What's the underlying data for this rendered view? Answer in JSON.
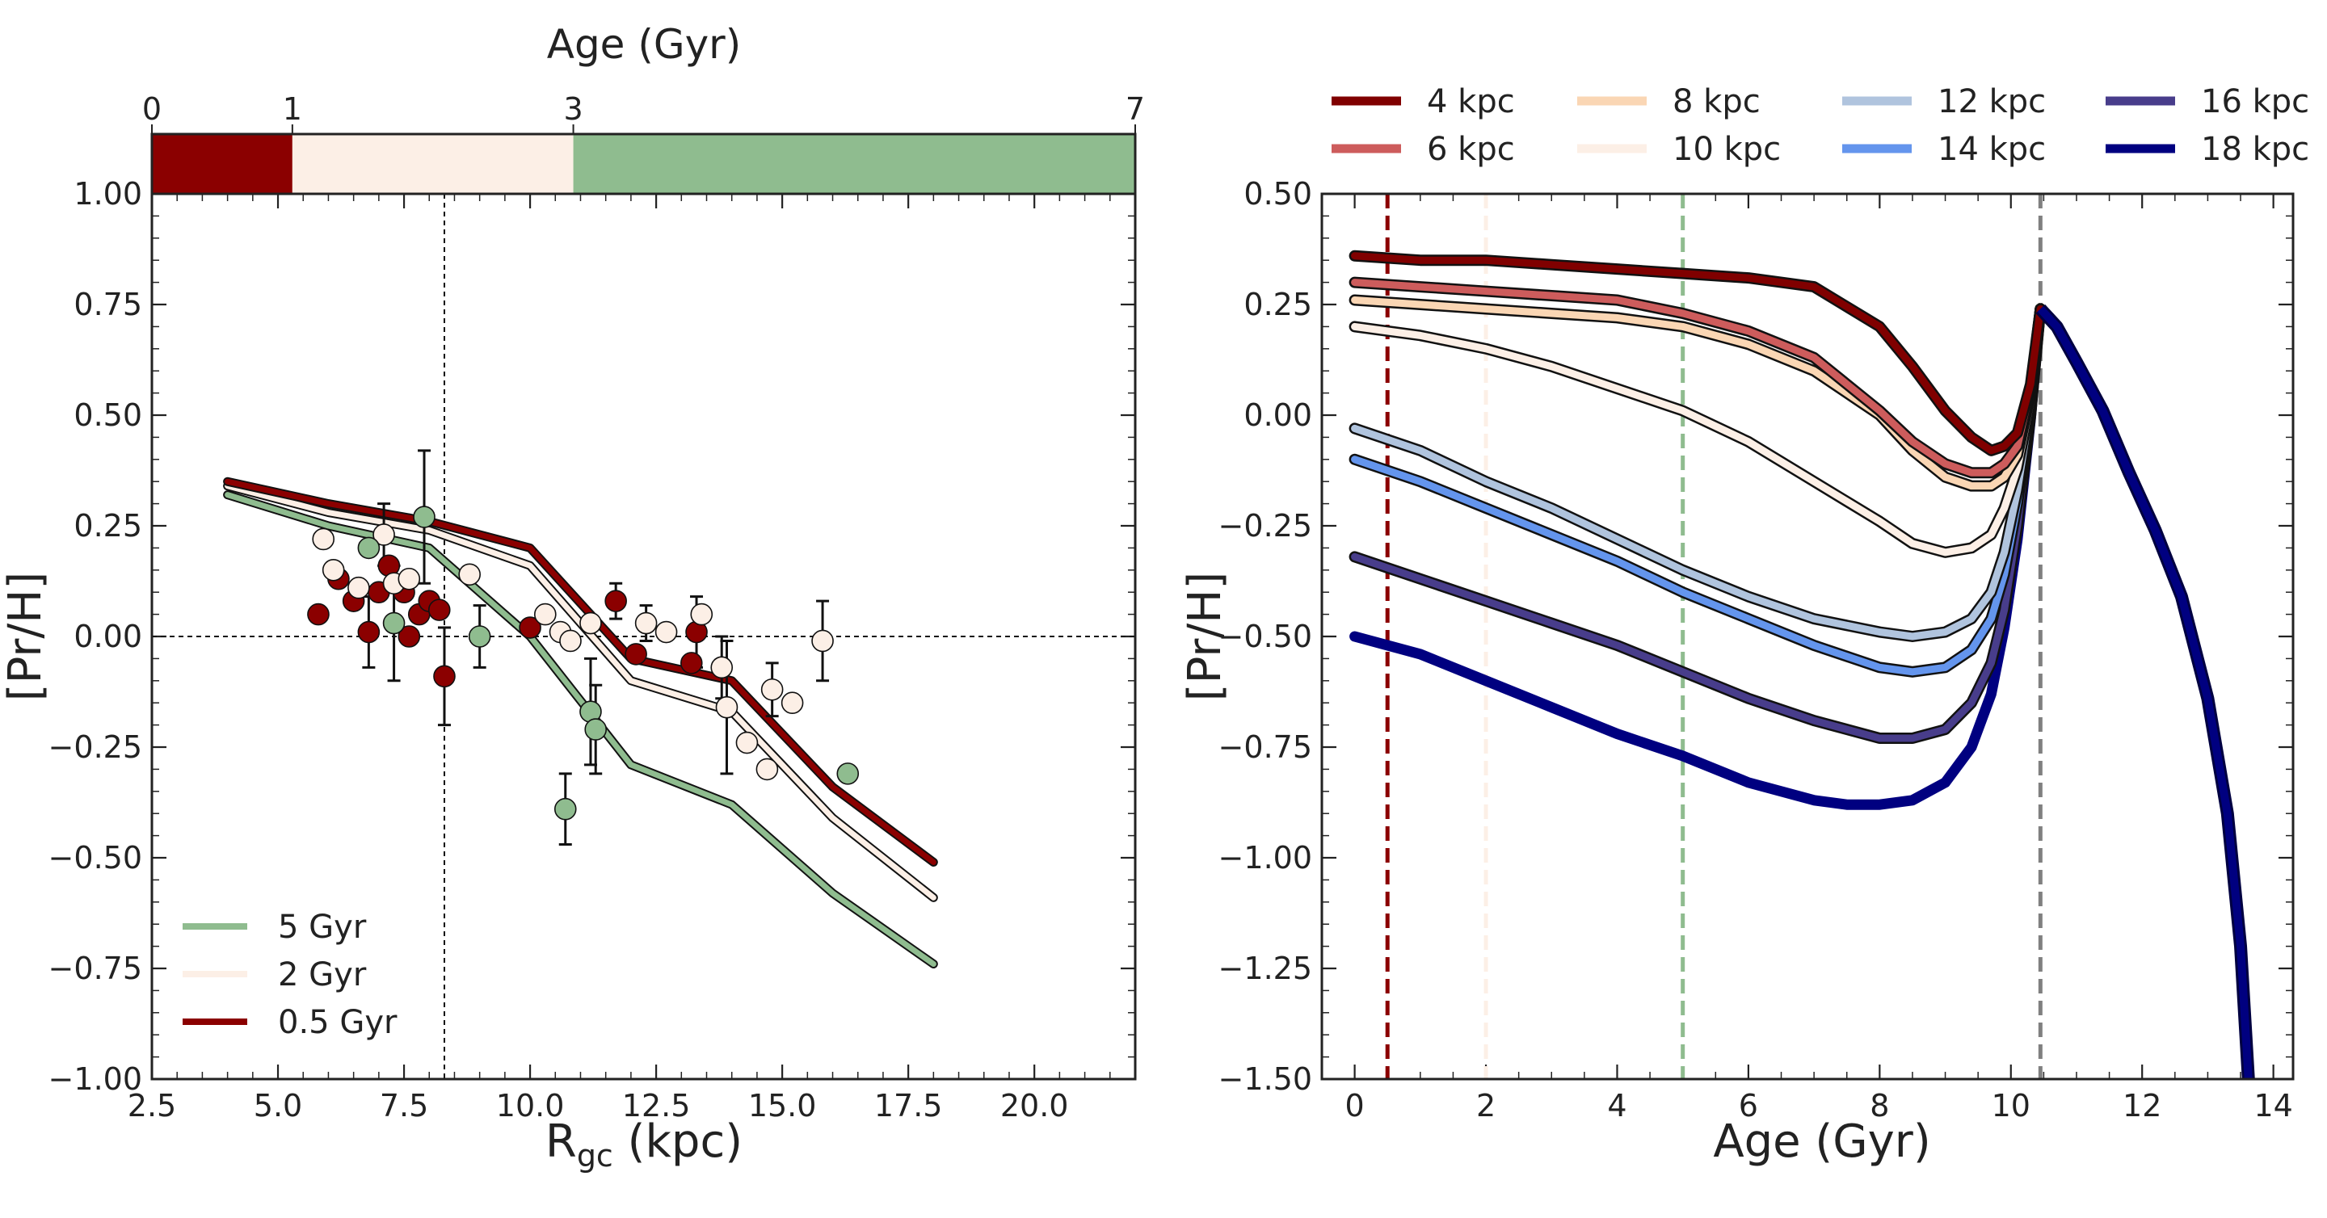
{
  "chart_data": [
    {
      "type": "scatter",
      "xlabel": "R",
      "xlabel_sub": "gc",
      "xlabel_unit": " (kpc)",
      "ylabel": "[Pr/H]",
      "xlim": [
        2.5,
        22.0
      ],
      "ylim": [
        -1.0,
        1.0
      ],
      "xticks": [
        2.5,
        5.0,
        7.5,
        10.0,
        12.5,
        15.0,
        17.5,
        20.0
      ],
      "xtick_labels": [
        "2.5",
        "5.0",
        "7.5",
        "10.0",
        "12.5",
        "15.0",
        "17.5",
        "20.0"
      ],
      "yticks": [
        -1.0,
        -0.75,
        -0.5,
        -0.25,
        0.0,
        0.25,
        0.5,
        0.75,
        1.0
      ],
      "ytick_labels": [
        "−1.00",
        "−0.75",
        "−0.50",
        "−0.25",
        "0.00",
        "0.25",
        "0.50",
        "0.75",
        "1.00"
      ],
      "reference_lines": {
        "x": 8.3,
        "y": 0.0,
        "style": "dashed"
      },
      "age_colorbar": {
        "label": "Age (Gyr)",
        "ticks": [
          0,
          1,
          3,
          7
        ],
        "tick_labels": [
          "0",
          "1",
          "3",
          "7"
        ],
        "segments": [
          {
            "from": 0,
            "to": 1,
            "color": "#8b0000"
          },
          {
            "from": 1,
            "to": 3,
            "color": "#fcefe6"
          },
          {
            "from": 3,
            "to": 7,
            "color": "#8fbc8f"
          }
        ]
      },
      "legend_position": "lower-left",
      "series": [
        {
          "name": "5 Gyr",
          "color": "#8fbc8f",
          "x": [
            4.0,
            6.0,
            8.0,
            10.0,
            12.0,
            14.0,
            16.0,
            18.0
          ],
          "y": [
            0.32,
            0.25,
            0.2,
            0.0,
            -0.29,
            -0.38,
            -0.58,
            -0.74
          ]
        },
        {
          "name": "2 Gyr",
          "color": "#fcefe6",
          "x": [
            4.0,
            6.0,
            8.0,
            10.0,
            12.0,
            14.0,
            16.0,
            18.0
          ],
          "y": [
            0.34,
            0.28,
            0.24,
            0.16,
            -0.1,
            -0.17,
            -0.41,
            -0.59
          ]
        },
        {
          "name": "0.5 Gyr",
          "color": "#8b0000",
          "x": [
            4.0,
            6.0,
            8.0,
            10.0,
            12.0,
            14.0,
            16.0,
            18.0
          ],
          "y": [
            0.35,
            0.3,
            0.26,
            0.2,
            -0.05,
            -0.1,
            -0.34,
            -0.51
          ]
        }
      ],
      "points": [
        {
          "x": 5.8,
          "y": 0.05,
          "group": "young"
        },
        {
          "x": 6.2,
          "y": 0.13,
          "group": "young"
        },
        {
          "x": 6.5,
          "y": 0.08,
          "group": "young"
        },
        {
          "x": 6.8,
          "y": 0.01,
          "err": 0.08,
          "group": "young"
        },
        {
          "x": 7.0,
          "y": 0.1,
          "group": "young"
        },
        {
          "x": 7.2,
          "y": 0.16,
          "group": "young"
        },
        {
          "x": 7.5,
          "y": 0.1,
          "group": "young"
        },
        {
          "x": 7.6,
          "y": 0.0,
          "group": "young"
        },
        {
          "x": 7.8,
          "y": 0.05,
          "group": "young"
        },
        {
          "x": 8.0,
          "y": 0.08,
          "group": "young"
        },
        {
          "x": 8.2,
          "y": 0.06,
          "group": "young"
        },
        {
          "x": 8.3,
          "y": -0.09,
          "err": 0.11,
          "group": "young"
        },
        {
          "x": 10.0,
          "y": 0.02,
          "group": "young"
        },
        {
          "x": 11.7,
          "y": 0.08,
          "err": 0.04,
          "group": "young"
        },
        {
          "x": 12.1,
          "y": -0.04,
          "group": "young"
        },
        {
          "x": 13.2,
          "y": -0.06,
          "group": "young"
        },
        {
          "x": 13.3,
          "y": 0.01,
          "err": 0.08,
          "group": "young"
        },
        {
          "x": 5.9,
          "y": 0.22,
          "group": "mid"
        },
        {
          "x": 6.1,
          "y": 0.15,
          "group": "mid"
        },
        {
          "x": 6.6,
          "y": 0.11,
          "group": "mid"
        },
        {
          "x": 7.1,
          "y": 0.23,
          "err": 0.07,
          "group": "mid"
        },
        {
          "x": 7.3,
          "y": 0.12,
          "group": "mid"
        },
        {
          "x": 7.6,
          "y": 0.13,
          "group": "mid"
        },
        {
          "x": 8.8,
          "y": 0.14,
          "group": "mid"
        },
        {
          "x": 10.3,
          "y": 0.05,
          "group": "mid"
        },
        {
          "x": 10.6,
          "y": 0.01,
          "group": "mid"
        },
        {
          "x": 10.8,
          "y": -0.01,
          "group": "mid"
        },
        {
          "x": 11.2,
          "y": 0.03,
          "group": "mid"
        },
        {
          "x": 12.3,
          "y": 0.03,
          "err": 0.04,
          "group": "mid"
        },
        {
          "x": 12.7,
          "y": 0.01,
          "group": "mid"
        },
        {
          "x": 13.4,
          "y": 0.05,
          "group": "mid"
        },
        {
          "x": 13.8,
          "y": -0.07,
          "err": 0.07,
          "group": "mid"
        },
        {
          "x": 13.9,
          "y": -0.16,
          "err": 0.15,
          "group": "mid"
        },
        {
          "x": 14.3,
          "y": -0.24,
          "group": "mid"
        },
        {
          "x": 14.7,
          "y": -0.3,
          "group": "mid"
        },
        {
          "x": 14.8,
          "y": -0.12,
          "err": 0.06,
          "group": "mid"
        },
        {
          "x": 15.2,
          "y": -0.15,
          "group": "mid"
        },
        {
          "x": 15.8,
          "y": -0.01,
          "err": 0.09,
          "group": "mid"
        },
        {
          "x": 6.8,
          "y": 0.2,
          "group": "old"
        },
        {
          "x": 7.3,
          "y": 0.03,
          "err": 0.13,
          "group": "old"
        },
        {
          "x": 7.9,
          "y": 0.27,
          "err": 0.15,
          "group": "old"
        },
        {
          "x": 9.0,
          "y": 0.0,
          "err": 0.07,
          "group": "old"
        },
        {
          "x": 10.7,
          "y": -0.39,
          "err": 0.08,
          "group": "old"
        },
        {
          "x": 11.2,
          "y": -0.17,
          "err": 0.12,
          "group": "old"
        },
        {
          "x": 11.3,
          "y": -0.21,
          "err": 0.1,
          "group": "old"
        },
        {
          "x": 16.3,
          "y": -0.31,
          "group": "old"
        }
      ]
    },
    {
      "type": "line",
      "xlabel": "Age (Gyr)",
      "ylabel": "[Pr/H]",
      "xlim": [
        -0.5,
        14.3
      ],
      "ylim": [
        -1.5,
        0.5
      ],
      "xticks": [
        0,
        2,
        4,
        6,
        8,
        10,
        12,
        14
      ],
      "xtick_labels": [
        "0",
        "2",
        "4",
        "6",
        "8",
        "10",
        "12",
        "14"
      ],
      "yticks": [
        -1.5,
        -1.25,
        -1.0,
        -0.75,
        -0.5,
        -0.25,
        0.0,
        0.25,
        0.5
      ],
      "ytick_labels": [
        "−1.50",
        "−1.25",
        "−1.00",
        "−0.75",
        "−0.50",
        "−0.25",
        "0.00",
        "0.25",
        "0.50"
      ],
      "vertical_lines": [
        {
          "x": 0.5,
          "color": "#8b0000"
        },
        {
          "x": 2.0,
          "color": "#fcefe6"
        },
        {
          "x": 5.0,
          "color": "#8fbc8f"
        },
        {
          "x": 10.45,
          "color": "#808080"
        }
      ],
      "legend_position": "top",
      "common_tail": {
        "x": [
          10.45,
          10.7,
          11.0,
          11.4,
          11.8,
          12.2,
          12.6,
          13.0,
          13.3,
          13.5,
          13.6,
          13.62
        ],
        "y": [
          0.24,
          0.2,
          0.12,
          0.01,
          -0.13,
          -0.26,
          -0.41,
          -0.64,
          -0.9,
          -1.2,
          -1.45,
          -1.5
        ]
      },
      "series": [
        {
          "name": "4 kpc",
          "color": "#800000",
          "outlined": true,
          "x": [
            0,
            1,
            2,
            3,
            4,
            5,
            6,
            7,
            8,
            8.5,
            9,
            9.4,
            9.7,
            9.9,
            10.1,
            10.3,
            10.45
          ],
          "y": [
            0.36,
            0.35,
            0.35,
            0.34,
            0.33,
            0.32,
            0.31,
            0.29,
            0.2,
            0.11,
            0.01,
            -0.05,
            -0.08,
            -0.07,
            -0.04,
            0.07,
            0.24
          ]
        },
        {
          "name": "6 kpc",
          "color": "#cd5c5c",
          "outlined": true,
          "x": [
            0,
            1,
            2,
            3,
            4,
            5,
            6,
            7,
            8,
            8.5,
            9,
            9.4,
            9.7,
            9.9,
            10.1,
            10.3,
            10.45
          ],
          "y": [
            0.3,
            0.29,
            0.28,
            0.27,
            0.26,
            0.23,
            0.19,
            0.13,
            0.01,
            -0.06,
            -0.11,
            -0.13,
            -0.13,
            -0.11,
            -0.07,
            0.06,
            0.24
          ]
        },
        {
          "name": "8 kpc",
          "color": "#fad6b4",
          "outlined": true,
          "x": [
            0,
            1,
            2,
            3,
            4,
            5,
            6,
            7,
            8,
            8.5,
            9,
            9.4,
            9.7,
            9.9,
            10.1,
            10.3,
            10.45
          ],
          "y": [
            0.26,
            0.25,
            0.24,
            0.23,
            0.22,
            0.2,
            0.16,
            0.1,
            0.0,
            -0.08,
            -0.14,
            -0.16,
            -0.16,
            -0.14,
            -0.09,
            0.05,
            0.24
          ]
        },
        {
          "name": "10 kpc",
          "color": "#fcefe6",
          "outlined": true,
          "x": [
            0,
            1,
            2,
            3,
            4,
            5,
            6,
            7,
            8,
            8.5,
            9,
            9.4,
            9.7,
            9.9,
            10.1,
            10.3,
            10.45
          ],
          "y": [
            0.2,
            0.18,
            0.15,
            0.11,
            0.06,
            0.01,
            -0.06,
            -0.15,
            -0.24,
            -0.29,
            -0.31,
            -0.3,
            -0.27,
            -0.21,
            -0.12,
            0.03,
            0.24
          ]
        },
        {
          "name": "12 kpc",
          "color": "#b0c4de",
          "outlined": true,
          "x": [
            0,
            1,
            2,
            3,
            4,
            5,
            6,
            7,
            8,
            8.5,
            9,
            9.4,
            9.7,
            9.9,
            10.1,
            10.3,
            10.45
          ],
          "y": [
            -0.03,
            -0.08,
            -0.15,
            -0.21,
            -0.28,
            -0.35,
            -0.41,
            -0.46,
            -0.49,
            -0.5,
            -0.49,
            -0.46,
            -0.4,
            -0.31,
            -0.17,
            0.02,
            0.24
          ]
        },
        {
          "name": "14 kpc",
          "color": "#6495ed",
          "outlined": true,
          "x": [
            0,
            1,
            2,
            3,
            4,
            5,
            6,
            7,
            8,
            8.5,
            9,
            9.4,
            9.7,
            9.9,
            10.1,
            10.3,
            10.45
          ],
          "y": [
            -0.1,
            -0.15,
            -0.21,
            -0.27,
            -0.33,
            -0.4,
            -0.46,
            -0.52,
            -0.57,
            -0.58,
            -0.57,
            -0.53,
            -0.46,
            -0.36,
            -0.2,
            0.01,
            0.24
          ]
        },
        {
          "name": "16 kpc",
          "color": "#483d8b",
          "outlined": true,
          "x": [
            0,
            1,
            2,
            3,
            4,
            5,
            6,
            7,
            8,
            8.5,
            9,
            9.4,
            9.7,
            9.9,
            10.1,
            10.3,
            10.45
          ],
          "y": [
            -0.32,
            -0.37,
            -0.42,
            -0.47,
            -0.52,
            -0.58,
            -0.64,
            -0.69,
            -0.73,
            -0.73,
            -0.71,
            -0.65,
            -0.56,
            -0.44,
            -0.25,
            0.0,
            0.24
          ]
        },
        {
          "name": "18 kpc",
          "color": "#000080",
          "outlined": false,
          "x": [
            0,
            1,
            2,
            3,
            4,
            5,
            6,
            7,
            7.5,
            8,
            8.5,
            9,
            9.4,
            9.7,
            9.9,
            10.1,
            10.3,
            10.45
          ],
          "y": [
            -0.5,
            -0.54,
            -0.6,
            -0.66,
            -0.72,
            -0.77,
            -0.83,
            -0.87,
            -0.88,
            -0.88,
            -0.87,
            -0.83,
            -0.75,
            -0.63,
            -0.48,
            -0.28,
            -0.01,
            0.24
          ]
        }
      ]
    }
  ]
}
